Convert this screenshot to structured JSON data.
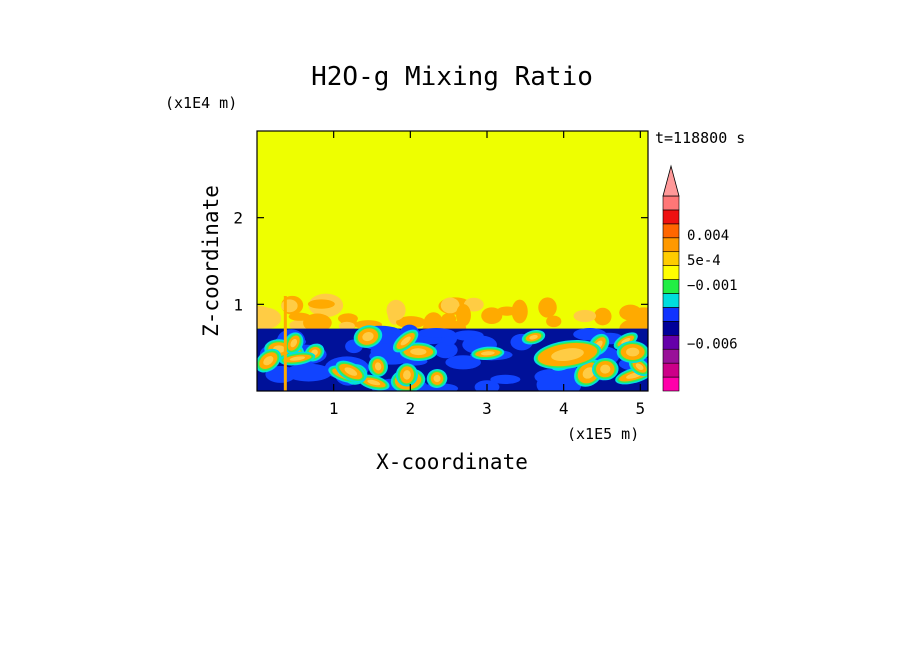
{
  "chart_data": {
    "type": "heatmap",
    "title": "H2O-g Mixing Ratio",
    "xlabel": "X-coordinate",
    "ylabel": "Z-coordinate",
    "x_unit": "(x1E5 m)",
    "y_unit": "(x1E4 m)",
    "time_label": "t=118800 s",
    "xlim": [
      0.0,
      5.1
    ],
    "ylim": [
      0.0,
      3.0
    ],
    "x_ticks": [
      1,
      2,
      3,
      4,
      5
    ],
    "x_tick_labels": [
      "1",
      "2",
      "3",
      "4",
      "5"
    ],
    "y_ticks": [
      1,
      2
    ],
    "y_tick_labels": [
      "1",
      "2"
    ],
    "colorbar": {
      "colors": [
        "#ff00aa",
        "#cc0088",
        "#991199",
        "#6600aa",
        "#000099",
        "#1133ff",
        "#00dddd",
        "#22ee44",
        "#ffff00",
        "#ffcc00",
        "#ff9900",
        "#ff6600",
        "#ee1111",
        "#ff7777"
      ],
      "extend_color": "#ff9999",
      "labels": [
        {
          "text": "0.004",
          "value": 0.004
        },
        {
          "text": "5e-4",
          "value": 0.0005
        },
        {
          "text": "−0.001",
          "value": -0.001
        },
        {
          "text": "−0.006",
          "value": -0.006
        }
      ]
    },
    "field_description": {
      "upper_value_color": "#eeff00",
      "boundary_layer_top_km": 0.72,
      "transition_band_top_km": 1.05
    },
    "colors": {
      "background": "#eeff00",
      "orange": "#ffaa00",
      "light_orange": "#ffcc44",
      "navy": "#001199",
      "blue": "#1144ff",
      "cyan": "#00e0e0",
      "green": "#33ee55"
    }
  }
}
